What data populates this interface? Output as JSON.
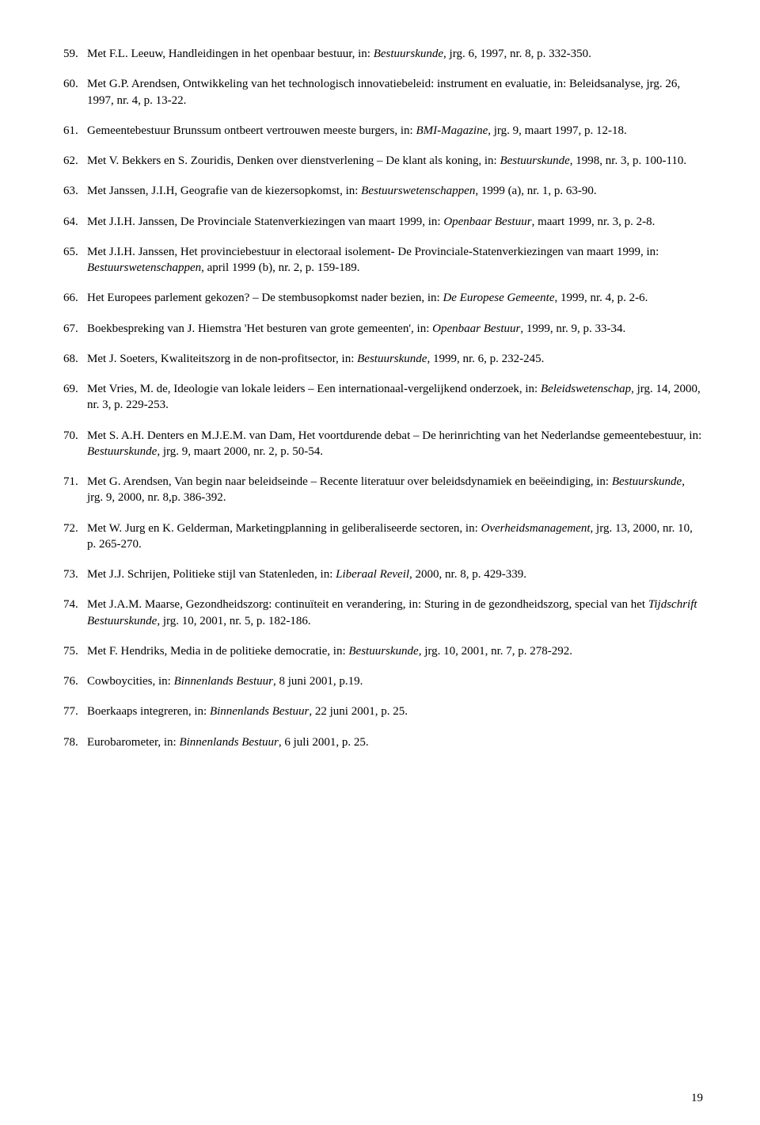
{
  "page_number": "19",
  "refs": [
    {
      "html": "Met F.L. Leeuw, Handleidingen in het openbaar bestuur, in: <span class=\"i\">Bestuurskunde</span>, jrg. 6, 1997, nr. 8, p. 332-350."
    },
    {
      "html": "Met G.P. Arendsen, Ontwikkeling van het technologisch innovatiebeleid: instrument en evaluatie, in: Beleidsanalyse, jrg. 26, 1997, nr. 4, p. 13-22."
    },
    {
      "html": "Gemeentebestuur Brunssum ontbeert vertrouwen meeste burgers, in: <span class=\"i\">BMI-Magazine</span>, jrg. 9, maart 1997, p. 12-18."
    },
    {
      "html": "Met V. Bekkers en S. Zouridis, Denken over dienstverlening – De klant als koning, in: <span class=\"i\">Bestuurskunde</span>, 1998, nr. 3, p. 100-110."
    },
    {
      "html": "Met Janssen, J.I.H, Geografie van de kiezersopkomst, in: <span class=\"i\">Bestuurswetenschappen</span>, 1999 (a), nr. 1, p. 63-90."
    },
    {
      "html": "Met J.I.H. Janssen, De Provinciale Statenverkiezingen van maart 1999, in: <span class=\"i\">Openbaar Bestuur</span>, maart 1999, nr. 3, p. 2-8."
    },
    {
      "html": "Met  J.I.H. Janssen, Het provinciebestuur in electoraal isolement- De Provinciale-Statenverkiezingen van maart 1999, in: <span class=\"i\">Bestuurswetenschappen</span>, april 1999 (b), nr. 2, p. 159-189."
    },
    {
      "html": "Het Europees parlement gekozen? – De stembusopkomst nader bezien, in: <span class=\"i\">De Europese Gemeente</span>, 1999, nr. 4, p. 2-6."
    },
    {
      "html": "Boekbespreking van J. Hiemstra 'Het besturen van grote gemeenten', in: <span class=\"i\">Openbaar Bestuur</span>, 1999, nr. 9, p. 33-34."
    },
    {
      "html": "Met  J. Soeters, Kwaliteitszorg in de non-profitsector, in: <span class=\"i\">Bestuurskunde</span>, 1999, nr. 6, p. 232-245."
    },
    {
      "html": "Met Vries, M. de, Ideologie van lokale leiders – Een internationaal-vergelijkend onderzoek, in: <span class=\"i\">Beleidswetenschap</span>, jrg. 14, 2000, nr. 3, p. 229-253."
    },
    {
      "html": "Met S. A.H. Denters en M.J.E.M. van Dam, Het voortdurende debat – De herinrichting van het Nederlandse gemeentebestuur, in: <span class=\"i\">Bestuurskunde</span>, jrg. 9, maart 2000, nr. 2, p. 50-54."
    },
    {
      "html": "Met G. Arendsen, Van begin naar beleidseinde – Recente literatuur over beleidsdynamiek en beëeindiging, in: <span class=\"i\">Bestuurskunde</span>, jrg. 9, 2000, nr. 8,p. 386-392."
    },
    {
      "html": "Met W. Jurg en K. Gelderman, Marketingplanning in geliberaliseerde sectoren, in: <span class=\"i\">Overheidsmanagement</span>, jrg. 13, 2000, nr. 10, p. 265-270."
    },
    {
      "html": "Met J.J. Schrijen, Politieke stijl van Statenleden, in: <span class=\"i\">Liberaal Reveil</span>, 2000, nr. 8, p. 429-339."
    },
    {
      "html": "Met J.A.M. Maarse, Gezondheidszorg: continuïteit en verandering, in: Sturing in de gezondheidszorg, special van het <span class=\"i\">Tijdschrift Bestuurskunde</span>, jrg. 10, 2001, nr. 5, p. 182-186."
    },
    {
      "html": "Met F. Hendriks, Media in de politieke democratie, in: <span class=\"i\">Bestuurskunde</span>, jrg. 10, 2001, nr. 7, p. 278-292."
    },
    {
      "html": "Cowboycities, in: <span class=\"i\">Binnenlands Bestuur</span>, 8 juni 2001, p.19."
    },
    {
      "html": "Boerkaaps integreren, in: <span class=\"i\">Binnenlands Bestuur</span>, 22 juni 2001, p. 25."
    },
    {
      "html": "Eurobarometer, in: <span class=\"i\">Binnenlands Bestuur</span>, 6 juli 2001, p. 25."
    }
  ]
}
